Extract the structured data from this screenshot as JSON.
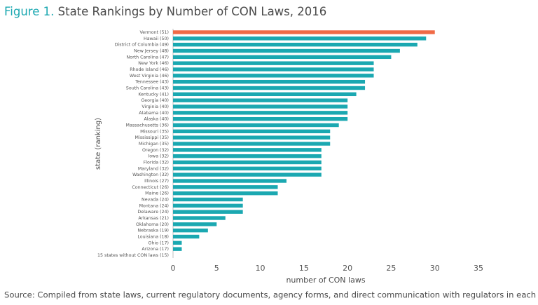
{
  "chart_data": {
    "type": "barh",
    "title_label": "Figure 1.",
    "title": "State Rankings by Number of CON Laws, 2016",
    "x_label": "number of CON laws",
    "y_label": "state (ranking)",
    "source": "Source: Compiled from state laws, current regulatory documents, agency forms, and direct communication with regulators in each state.",
    "categories": [
      "Vermont (51)",
      "Hawaii (50)",
      "District of Columbia (49)",
      "New Jersey (48)",
      "North Carolina (47)",
      "New York (46)",
      "Rhode Island (46)",
      "West Virginia (46)",
      "Tennessee (43)",
      "South Carolina (43)",
      "Kentucky (41)",
      "Georgia (40)",
      "Virginia (40)",
      "Alabama (40)",
      "Alaska (40)",
      "Massachusetts (36)",
      "Missouri (35)",
      "Mississippi (35)",
      "Michigan (35)",
      "Oregon (32)",
      "Iowa (32)",
      "Florida (32)",
      "Maryland (32)",
      "Washington (32)",
      "Illinois (27)",
      "Connecticut (26)",
      "Maine (26)",
      "Nevada (24)",
      "Montana (24)",
      "Delaware (24)",
      "Arkansas (21)",
      "Oklahoma (20)",
      "Nebraska (19)",
      "Louisiana (18)",
      "Ohio (17)",
      "Arizona (17)",
      "15 states without CON laws (15)"
    ],
    "values": [
      30,
      29,
      28,
      26,
      25,
      23,
      23,
      23,
      22,
      22,
      21,
      20,
      20,
      20,
      20,
      19,
      18,
      18,
      18,
      17,
      17,
      17,
      17,
      17,
      13,
      12,
      12,
      8,
      8,
      8,
      6,
      5,
      4,
      3,
      1,
      1,
      0
    ],
    "colors": [
      "#f06a46",
      "#1ba8b1",
      "#1ba8b1",
      "#1ba8b1",
      "#1ba8b1",
      "#1ba8b1",
      "#1ba8b1",
      "#1ba8b1",
      "#1ba8b1",
      "#1ba8b1",
      "#1ba8b1",
      "#1ba8b1",
      "#1ba8b1",
      "#1ba8b1",
      "#1ba8b1",
      "#1ba8b1",
      "#1ba8b1",
      "#1ba8b1",
      "#1ba8b1",
      "#1ba8b1",
      "#1ba8b1",
      "#1ba8b1",
      "#1ba8b1",
      "#1ba8b1",
      "#1ba8b1",
      "#1ba8b1",
      "#1ba8b1",
      "#1ba8b1",
      "#1ba8b1",
      "#1ba8b1",
      "#1ba8b1",
      "#1ba8b1",
      "#1ba8b1",
      "#1ba8b1",
      "#1ba8b1",
      "#1ba8b1",
      "#1ba8b1"
    ],
    "xlim": [
      0,
      35
    ],
    "xticks": [
      0,
      5,
      10,
      15,
      20,
      25,
      30,
      35
    ],
    "grid": false
  }
}
